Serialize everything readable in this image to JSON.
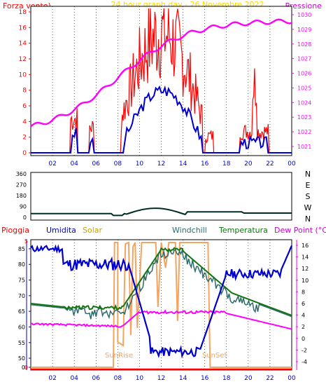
{
  "colors": {
    "background": "#ffffff",
    "plot_bg": "#ffffff",
    "grid": "#000000",
    "wind": "#ff0000",
    "gust": "#0000cc",
    "pressure": "#ff00ff",
    "direction": "#002c26",
    "rain": "#ff0000",
    "humidity": "#0000cc",
    "solar": "#f4a460",
    "windchill": "#2e6b6b",
    "temperature": "#127512",
    "dewpoint": "#ff00ff",
    "title": "#ffd400"
  },
  "top_chart": {
    "left_title": "Forza vento)",
    "center_title": "24 hour graph day - 26 Novembre 2022",
    "right_title": "Pressione",
    "left_ticks": [
      "0",
      "2",
      "4",
      "6",
      "8",
      "10",
      "12",
      "14",
      "16",
      "18"
    ],
    "right_ticks": [
      "1021",
      "1022",
      "1023",
      "1024",
      "1025",
      "1026",
      "1027",
      "1028",
      "1029",
      "1030"
    ],
    "x_ticks": [
      "02",
      "04",
      "06",
      "08",
      "10",
      "12",
      "14",
      "16",
      "18",
      "20",
      "22",
      "00"
    ]
  },
  "mid_chart": {
    "left_ticks": [
      "0",
      "90",
      "180",
      "270",
      "360"
    ],
    "right_labels": [
      "N",
      "W",
      "S",
      "E",
      "N"
    ]
  },
  "bottom_chart": {
    "labels": {
      "rain": "Pioggia",
      "humidity": "Umidita",
      "solar": "Solar",
      "windchill": "Windchill",
      "temperature": "Temperatura",
      "dewpoint": "Dew Point (°C)"
    },
    "left_ticks": [
      "0",
      "50",
      "55",
      "60",
      "65",
      "70",
      "75",
      "80",
      "85"
    ],
    "right_ticks": [
      "-4",
      "-2",
      "0",
      "2",
      "4",
      "6",
      "8",
      "10",
      "12",
      "14",
      "16"
    ],
    "rain_ticks": [
      "0",
      "5"
    ],
    "annotations": {
      "sunrise": "SunRise",
      "sunset": "SunSet"
    },
    "x_ticks": [
      "02",
      "04",
      "06",
      "08",
      "10",
      "12",
      "14",
      "16",
      "18",
      "20",
      "22",
      "00"
    ]
  },
  "series_hint": {
    "pressure_start": 1021.5,
    "pressure_end": 1029.6,
    "temperature_max": 15.5,
    "humidity_min": 50,
    "humidity_max": 86
  }
}
